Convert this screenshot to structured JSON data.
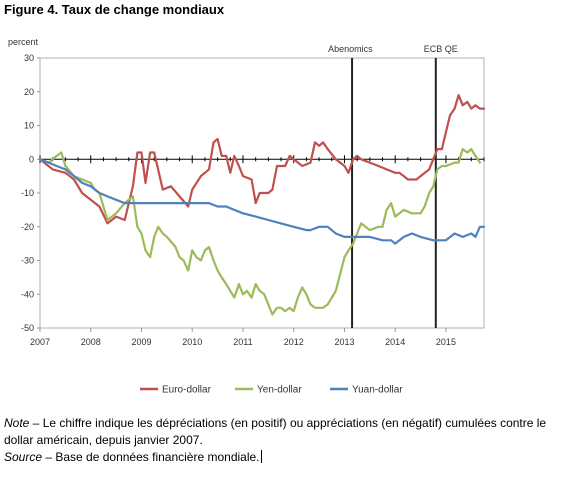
{
  "figure_title": "Figure 4. Taux de change mondiaux",
  "note": {
    "note_label": "Note",
    "note_text": " – Le chiffre indique les dépréciations (en positif) ou appréciations (en négatif) cumulées contre le dollar américain, depuis janvier 2007.",
    "source_label": "Source",
    "source_text": " – Base de données financière mondiale."
  },
  "chart_data": {
    "type": "line",
    "ylabel": "percent",
    "ylim": [
      -50,
      30
    ],
    "xlim": [
      2007.0,
      2015.75
    ],
    "y_ticks": [
      30,
      20,
      10,
      0,
      -10,
      -20,
      -30,
      -40,
      -50
    ],
    "x_ticks": [
      "2007",
      "2008",
      "2009",
      "2010",
      "2011",
      "2012",
      "2013",
      "2014",
      "2015"
    ],
    "grid": false,
    "legend_position": "bottom",
    "annotations": [
      {
        "label": "Abenomics",
        "x": 2013.15
      },
      {
        "label": "ECB QE",
        "x": 2014.8
      }
    ],
    "series": [
      {
        "name": "Euro-dollar",
        "color": "#c0504d",
        "points": [
          [
            2007.0,
            0
          ],
          [
            2007.25,
            -3
          ],
          [
            2007.5,
            -4
          ],
          [
            2007.67,
            -6
          ],
          [
            2007.83,
            -10
          ],
          [
            2008.0,
            -12
          ],
          [
            2008.17,
            -14
          ],
          [
            2008.33,
            -19
          ],
          [
            2008.5,
            -17
          ],
          [
            2008.67,
            -18
          ],
          [
            2008.83,
            -8
          ],
          [
            2008.92,
            2
          ],
          [
            2009.0,
            2
          ],
          [
            2009.08,
            -7
          ],
          [
            2009.17,
            2
          ],
          [
            2009.25,
            2
          ],
          [
            2009.42,
            -9
          ],
          [
            2009.58,
            -8
          ],
          [
            2009.75,
            -11
          ],
          [
            2009.92,
            -14
          ],
          [
            2010.0,
            -9
          ],
          [
            2010.17,
            -5
          ],
          [
            2010.25,
            -4
          ],
          [
            2010.33,
            -3
          ],
          [
            2010.42,
            5
          ],
          [
            2010.5,
            6
          ],
          [
            2010.58,
            1
          ],
          [
            2010.67,
            1
          ],
          [
            2010.75,
            -4
          ],
          [
            2010.83,
            1
          ],
          [
            2010.92,
            -2
          ],
          [
            2011.0,
            -5
          ],
          [
            2011.17,
            -6
          ],
          [
            2011.25,
            -13
          ],
          [
            2011.33,
            -10
          ],
          [
            2011.5,
            -10
          ],
          [
            2011.58,
            -9
          ],
          [
            2011.67,
            -2
          ],
          [
            2011.83,
            -2
          ],
          [
            2011.92,
            1
          ],
          [
            2012.0,
            0
          ],
          [
            2012.17,
            -2
          ],
          [
            2012.33,
            -1
          ],
          [
            2012.42,
            5
          ],
          [
            2012.5,
            4
          ],
          [
            2012.58,
            5
          ],
          [
            2012.67,
            3
          ],
          [
            2012.83,
            0
          ],
          [
            2013.0,
            -2
          ],
          [
            2013.08,
            -4
          ],
          [
            2013.17,
            0
          ],
          [
            2013.25,
            1
          ],
          [
            2013.33,
            0
          ],
          [
            2013.5,
            -1
          ],
          [
            2013.67,
            -2
          ],
          [
            2013.83,
            -3
          ],
          [
            2014.0,
            -4
          ],
          [
            2014.08,
            -4
          ],
          [
            2014.17,
            -5
          ],
          [
            2014.25,
            -6
          ],
          [
            2014.42,
            -6
          ],
          [
            2014.5,
            -5
          ],
          [
            2014.67,
            -3
          ],
          [
            2014.83,
            3
          ],
          [
            2014.92,
            3
          ],
          [
            2015.0,
            8
          ],
          [
            2015.08,
            13
          ],
          [
            2015.17,
            15
          ],
          [
            2015.25,
            19
          ],
          [
            2015.33,
            16
          ],
          [
            2015.42,
            17
          ],
          [
            2015.5,
            15
          ],
          [
            2015.58,
            16
          ],
          [
            2015.67,
            15
          ],
          [
            2015.75,
            15
          ]
        ]
      },
      {
        "name": "Yen-dollar",
        "color": "#9bbb59",
        "points": [
          [
            2007.0,
            0
          ],
          [
            2007.17,
            -1
          ],
          [
            2007.33,
            1
          ],
          [
            2007.42,
            2
          ],
          [
            2007.5,
            -2
          ],
          [
            2007.67,
            -5
          ],
          [
            2007.83,
            -6
          ],
          [
            2008.0,
            -7
          ],
          [
            2008.08,
            -9
          ],
          [
            2008.17,
            -10
          ],
          [
            2008.25,
            -14
          ],
          [
            2008.33,
            -18
          ],
          [
            2008.5,
            -16
          ],
          [
            2008.67,
            -13
          ],
          [
            2008.83,
            -11
          ],
          [
            2008.92,
            -20
          ],
          [
            2009.0,
            -22
          ],
          [
            2009.08,
            -27
          ],
          [
            2009.17,
            -29
          ],
          [
            2009.25,
            -23
          ],
          [
            2009.33,
            -20
          ],
          [
            2009.42,
            -22
          ],
          [
            2009.5,
            -23
          ],
          [
            2009.67,
            -26
          ],
          [
            2009.75,
            -29
          ],
          [
            2009.83,
            -30
          ],
          [
            2009.92,
            -33
          ],
          [
            2010.0,
            -27
          ],
          [
            2010.08,
            -29
          ],
          [
            2010.17,
            -30
          ],
          [
            2010.25,
            -27
          ],
          [
            2010.33,
            -26
          ],
          [
            2010.42,
            -30
          ],
          [
            2010.5,
            -33
          ],
          [
            2010.58,
            -35
          ],
          [
            2010.67,
            -37
          ],
          [
            2010.75,
            -39
          ],
          [
            2010.83,
            -41
          ],
          [
            2010.92,
            -37
          ],
          [
            2011.0,
            -40
          ],
          [
            2011.08,
            -39
          ],
          [
            2011.17,
            -41
          ],
          [
            2011.25,
            -37
          ],
          [
            2011.33,
            -39
          ],
          [
            2011.42,
            -40
          ],
          [
            2011.5,
            -43
          ],
          [
            2011.58,
            -46
          ],
          [
            2011.67,
            -44
          ],
          [
            2011.75,
            -44
          ],
          [
            2011.83,
            -45
          ],
          [
            2011.92,
            -44
          ],
          [
            2012.0,
            -45
          ],
          [
            2012.08,
            -41
          ],
          [
            2012.17,
            -38
          ],
          [
            2012.25,
            -40
          ],
          [
            2012.33,
            -43
          ],
          [
            2012.42,
            -44
          ],
          [
            2012.5,
            -44
          ],
          [
            2012.58,
            -44
          ],
          [
            2012.67,
            -43
          ],
          [
            2012.83,
            -39
          ],
          [
            2013.0,
            -29
          ],
          [
            2013.08,
            -27
          ],
          [
            2013.17,
            -25
          ],
          [
            2013.25,
            -22
          ],
          [
            2013.33,
            -19
          ],
          [
            2013.5,
            -21
          ],
          [
            2013.67,
            -20
          ],
          [
            2013.75,
            -20
          ],
          [
            2013.83,
            -15
          ],
          [
            2013.92,
            -13
          ],
          [
            2014.0,
            -17
          ],
          [
            2014.17,
            -15
          ],
          [
            2014.33,
            -16
          ],
          [
            2014.5,
            -16
          ],
          [
            2014.58,
            -14
          ],
          [
            2014.67,
            -10
          ],
          [
            2014.75,
            -8
          ],
          [
            2014.83,
            -3
          ],
          [
            2014.92,
            -2
          ],
          [
            2015.0,
            -2
          ],
          [
            2015.17,
            -1
          ],
          [
            2015.25,
            -1
          ],
          [
            2015.33,
            3
          ],
          [
            2015.42,
            2
          ],
          [
            2015.5,
            3
          ],
          [
            2015.58,
            1
          ],
          [
            2015.67,
            -1
          ]
        ]
      },
      {
        "name": "Yuan-dollar",
        "color": "#4f81bd",
        "points": [
          [
            2007.0,
            0
          ],
          [
            2007.17,
            -1
          ],
          [
            2007.33,
            -2
          ],
          [
            2007.5,
            -3
          ],
          [
            2007.67,
            -5
          ],
          [
            2007.83,
            -7
          ],
          [
            2008.0,
            -8
          ],
          [
            2008.17,
            -10
          ],
          [
            2008.33,
            -11
          ],
          [
            2008.5,
            -12
          ],
          [
            2008.67,
            -13
          ],
          [
            2008.83,
            -13
          ],
          [
            2009.0,
            -13
          ],
          [
            2009.5,
            -13
          ],
          [
            2010.0,
            -13
          ],
          [
            2010.33,
            -13
          ],
          [
            2010.5,
            -14
          ],
          [
            2010.67,
            -14
          ],
          [
            2010.83,
            -15
          ],
          [
            2011.0,
            -16
          ],
          [
            2011.25,
            -17
          ],
          [
            2011.5,
            -18
          ],
          [
            2011.75,
            -19
          ],
          [
            2012.0,
            -20
          ],
          [
            2012.25,
            -21
          ],
          [
            2012.33,
            -21
          ],
          [
            2012.5,
            -20
          ],
          [
            2012.67,
            -20
          ],
          [
            2012.83,
            -22
          ],
          [
            2013.0,
            -23
          ],
          [
            2013.25,
            -23
          ],
          [
            2013.5,
            -23
          ],
          [
            2013.75,
            -24
          ],
          [
            2013.92,
            -24
          ],
          [
            2014.0,
            -25
          ],
          [
            2014.17,
            -23
          ],
          [
            2014.33,
            -22
          ],
          [
            2014.5,
            -23
          ],
          [
            2014.75,
            -24
          ],
          [
            2014.92,
            -24
          ],
          [
            2015.0,
            -24
          ],
          [
            2015.17,
            -22
          ],
          [
            2015.33,
            -23
          ],
          [
            2015.5,
            -22
          ],
          [
            2015.58,
            -23
          ],
          [
            2015.67,
            -20
          ],
          [
            2015.75,
            -20
          ]
        ]
      }
    ]
  }
}
